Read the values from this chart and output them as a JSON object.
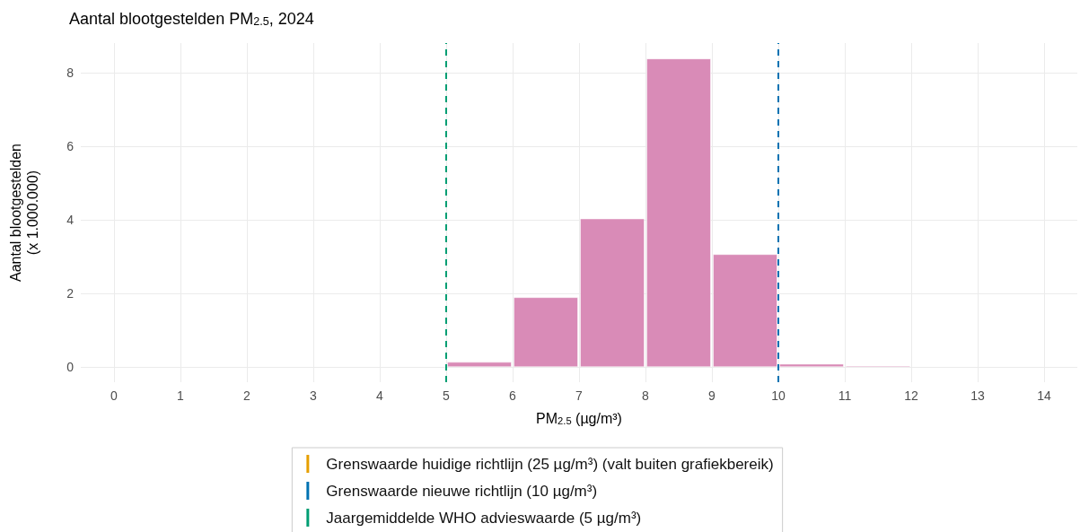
{
  "chart_data": {
    "type": "histogram",
    "title": "Aantal blootgestelden PM$_{2.5}$, 2024",
    "xlabel": "PM$_{2.5}$ (µg/m³)",
    "ylabel": "Aantal blootgestelden\n(x 1.000.000)",
    "bins": [
      5,
      6,
      7,
      8,
      9,
      10,
      11,
      12
    ],
    "values": [
      0.12,
      1.88,
      4.02,
      8.37,
      3.05,
      0.07,
      0.02
    ],
    "color": "#d98bb7",
    "xlim": [
      -0.5,
      14.5
    ],
    "xticks": [
      0,
      1,
      2,
      3,
      4,
      5,
      6,
      7,
      8,
      9,
      10,
      11,
      12,
      13,
      14
    ],
    "ylim": [
      -0.42,
      8.8
    ],
    "yticks": [
      0,
      2,
      4,
      6,
      8
    ],
    "grid": true,
    "legend": "bottom",
    "ref_lines": [
      {
        "axis": "x",
        "value": 10,
        "label": "Grenswaarde nieuwe richtlijn (10 µg/m³)",
        "color": "#0072b2",
        "line_style": "dashed"
      },
      {
        "axis": "x",
        "value": 5,
        "label": "Jaargemiddelde WHO advieswaarde (5 µg/m³)",
        "color": "#009e73",
        "line_style": "dashed"
      },
      {
        "axis": "x",
        "value": null,
        "label": "Grenswaarde huidige richtlijn (25 µg/m³) (valt buiten grafiekbereik)",
        "color": "#e69f00",
        "line_style": "dashed"
      }
    ]
  }
}
